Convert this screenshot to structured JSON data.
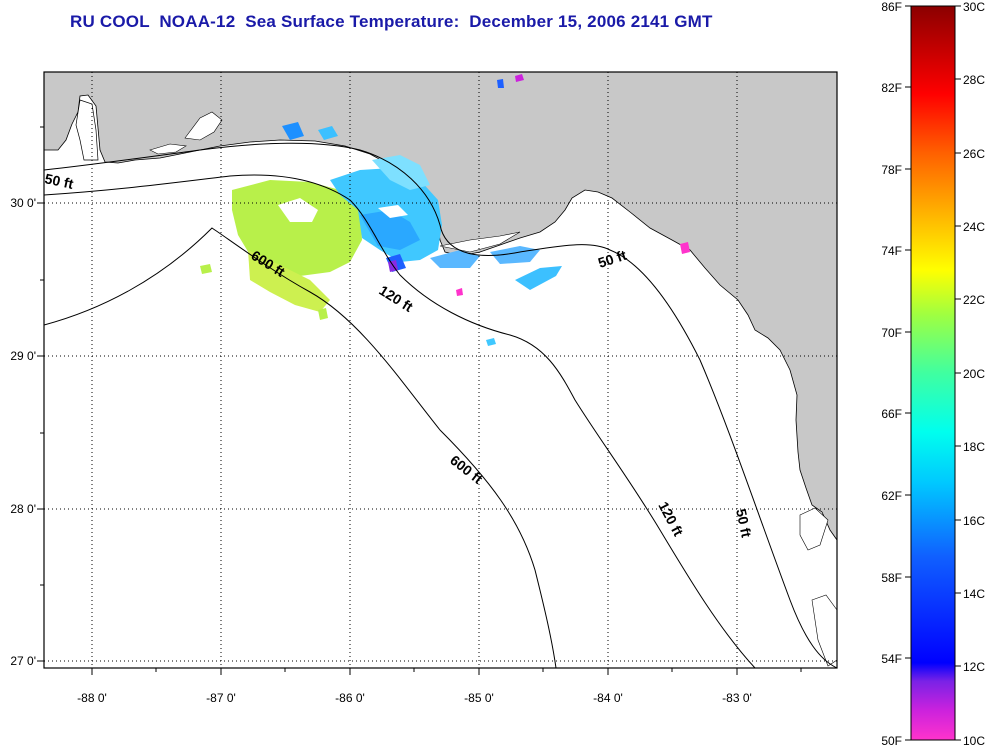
{
  "title": "RU COOL  NOAA-12  Sea Surface Temperature:  December 15, 2006 2141 GMT",
  "colors": {
    "title": "#1a1aa8",
    "land": "#c8c8c8",
    "water": "#ffffff",
    "border": "#000000"
  },
  "latitude_labels": [
    "30 0'",
    "29 0'",
    "28 0'",
    "27 0'"
  ],
  "longitude_labels": [
    "-88 0'",
    "-87 0'",
    "-86 0'",
    "-85 0'",
    "-84 0'",
    "-83 0'"
  ],
  "contour_labels": [
    {
      "id": "c50-west",
      "text": "50 ft"
    },
    {
      "id": "c600-north",
      "text": "600 ft"
    },
    {
      "id": "c120-north",
      "text": "120 ft"
    },
    {
      "id": "c50-east",
      "text": "50 ft"
    },
    {
      "id": "c600-south",
      "text": "600 ft"
    },
    {
      "id": "c120-south",
      "text": "120 ft"
    },
    {
      "id": "c50-south",
      "text": "50 ft"
    }
  ],
  "colorbar": {
    "fahrenheit_labels": [
      "86F",
      "82F",
      "78F",
      "74F",
      "70F",
      "66F",
      "62F",
      "58F",
      "54F",
      "50F"
    ],
    "celsius_labels": [
      "30C",
      "28C",
      "26C",
      "24C",
      "22C",
      "20C",
      "18C",
      "16C",
      "14C",
      "12C",
      "10C"
    ],
    "range_c": [
      10,
      30
    ],
    "range_f": [
      50,
      86
    ]
  }
}
